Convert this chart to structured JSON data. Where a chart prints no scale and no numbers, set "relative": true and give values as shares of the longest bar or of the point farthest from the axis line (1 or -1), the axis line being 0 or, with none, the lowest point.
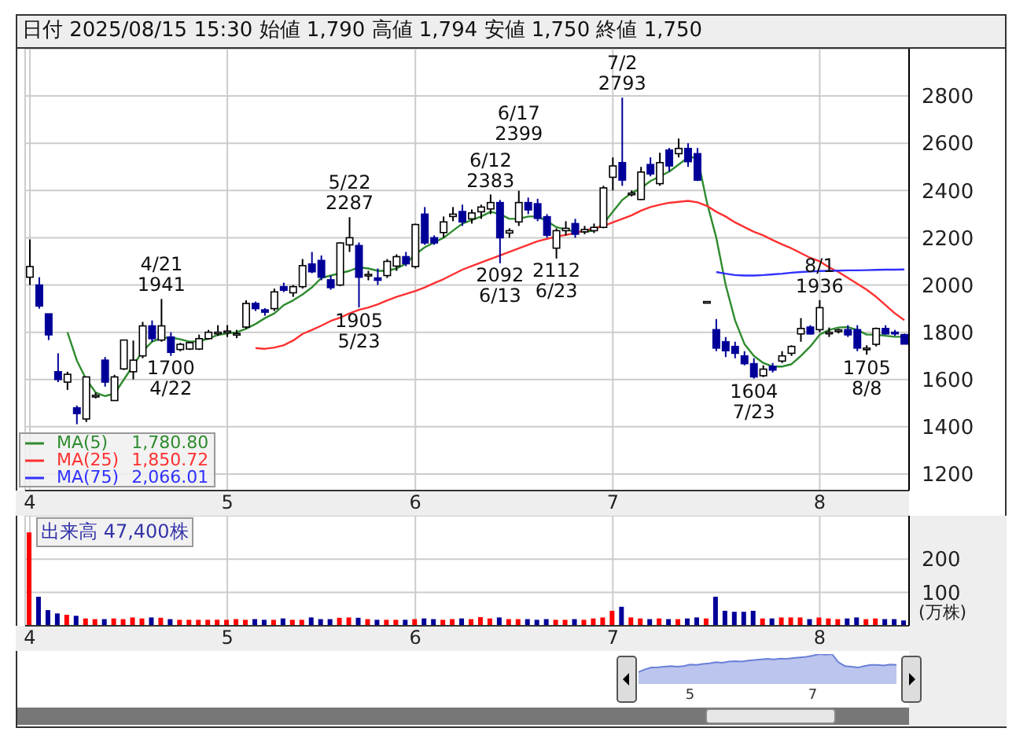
{
  "chart_data": [
    {
      "type": "candlestick",
      "title": "日付 2025/08/15 15:30 始値 1,790 高値 1,794 安値 1,750 終値 1,750",
      "categories": [
        "4",
        null,
        null,
        null,
        null,
        null,
        null,
        null,
        null,
        null,
        null,
        null,
        null,
        null,
        null,
        null,
        null,
        null,
        null,
        null,
        null,
        "5",
        null,
        null,
        null,
        null,
        null,
        null,
        null,
        null,
        null,
        null,
        null,
        null,
        null,
        null,
        null,
        null,
        null,
        null,
        null,
        "6",
        null,
        null,
        null,
        null,
        null,
        null,
        null,
        null,
        null,
        null,
        null,
        null,
        null,
        null,
        null,
        null,
        null,
        null,
        null,
        null,
        "7",
        null,
        null,
        null,
        null,
        null,
        null,
        null,
        null,
        null,
        null,
        null,
        null,
        null,
        null,
        null,
        null,
        null,
        null,
        null,
        null,
        null,
        "8",
        null,
        null,
        null,
        null,
        null,
        null,
        null,
        null,
        null
      ],
      "series": [
        {
          "type": "candlestick",
          "ohlc": [
            [
              2033,
              2193,
              2000,
              2078
            ],
            [
              2000,
              2033,
              1900,
              1911
            ],
            [
              1878,
              1878,
              1767,
              1789
            ],
            [
              1633,
              1711,
              1589,
              1600
            ],
            [
              1589,
              1633,
              1556,
              1622
            ],
            [
              1480,
              1490,
              1411,
              1456
            ],
            [
              1433,
              1611,
              1420,
              1611
            ],
            [
              1533,
              1545,
              1520,
              1533
            ],
            [
              1682,
              1695,
              1570,
              1589
            ],
            [
              1511,
              1620,
              1511,
              1611
            ],
            [
              1645,
              1767,
              1640,
              1767
            ],
            [
              1633,
              1765,
              1600,
              1682
            ],
            [
              1700,
              1844,
              1690,
              1827
            ],
            [
              1827,
              1850,
              1760,
              1773
            ],
            [
              1767,
              1941,
              1760,
              1827
            ],
            [
              1780,
              1800,
              1700,
              1715
            ],
            [
              1727,
              1755,
              1720,
              1749
            ],
            [
              1729,
              1760,
              1725,
              1756
            ],
            [
              1729,
              1790,
              1725,
              1773
            ],
            [
              1773,
              1810,
              1770,
              1800
            ],
            [
              1795,
              1830,
              1785,
              1800
            ],
            [
              1800,
              1830,
              1780,
              1805
            ],
            [
              1790,
              1810,
              1775,
              1795
            ],
            [
              1822,
              1935,
              1815,
              1922
            ],
            [
              1922,
              1930,
              1890,
              1900
            ],
            [
              1895,
              1902,
              1870,
              1885
            ],
            [
              1900,
              1985,
              1890,
              1971
            ],
            [
              1993,
              2010,
              1970,
              1978
            ],
            [
              1967,
              2000,
              1950,
              1993
            ],
            [
              1993,
              2110,
              1985,
              2082
            ],
            [
              2089,
              2140,
              2050,
              2056
            ],
            [
              2104,
              2125,
              2020,
              2033
            ],
            [
              2022,
              2040,
              1980,
              1989
            ],
            [
              2000,
              2180,
              1995,
              2178
            ],
            [
              2170,
              2287,
              2140,
              2200
            ],
            [
              2167,
              2180,
              1905,
              2033
            ],
            [
              2040,
              2060,
              2020,
              2045
            ],
            [
              2030,
              2070,
              2000,
              2020
            ],
            [
              2040,
              2110,
              2030,
              2100
            ],
            [
              2080,
              2130,
              2060,
              2120
            ],
            [
              2120,
              2140,
              2080,
              2090
            ],
            [
              2078,
              2260,
              2070,
              2256
            ],
            [
              2300,
              2330,
              2170,
              2178
            ],
            [
              2200,
              2210,
              2170,
              2178
            ],
            [
              2222,
              2290,
              2200,
              2267
            ],
            [
              2290,
              2330,
              2270,
              2300
            ],
            [
              2311,
              2340,
              2250,
              2267
            ],
            [
              2280,
              2320,
              2260,
              2305
            ],
            [
              2310,
              2340,
              2280,
              2330
            ],
            [
              2322,
              2383,
              2300,
              2349
            ],
            [
              2349,
              2360,
              2092,
              2200
            ],
            [
              2220,
              2240,
              2200,
              2230
            ],
            [
              2267,
              2399,
              2250,
              2349
            ],
            [
              2349,
              2370,
              2300,
              2318
            ],
            [
              2344,
              2365,
              2270,
              2282
            ],
            [
              2289,
              2300,
              2200,
              2211
            ],
            [
              2156,
              2240,
              2112,
              2230
            ],
            [
              2230,
              2270,
              2210,
              2240
            ],
            [
              2260,
              2280,
              2200,
              2215
            ],
            [
              2225,
              2250,
              2215,
              2235
            ],
            [
              2230,
              2260,
              2220,
              2244
            ],
            [
              2244,
              2420,
              2240,
              2411
            ],
            [
              2456,
              2540,
              2400,
              2504
            ],
            [
              2518,
              2793,
              2420,
              2444
            ],
            [
              2389,
              2400,
              2375,
              2389
            ],
            [
              2362,
              2500,
              2360,
              2478
            ],
            [
              2510,
              2540,
              2460,
              2470
            ],
            [
              2429,
              2560,
              2420,
              2518
            ],
            [
              2571,
              2580,
              2480,
              2504
            ],
            [
              2556,
              2620,
              2540,
              2578
            ],
            [
              2578,
              2600,
              2500,
              2522
            ],
            [
              2556,
              2580,
              2440,
              2444
            ],
            [
              1930,
              1930,
              1930,
              1930
            ],
            [
              1811,
              1856,
              1720,
              1733
            ],
            [
              1760,
              1780,
              1695,
              1722
            ],
            [
              1740,
              1760,
              1690,
              1711
            ],
            [
              1700,
              1720,
              1660,
              1667
            ],
            [
              1667,
              1690,
              1604,
              1611
            ],
            [
              1616,
              1660,
              1610,
              1644
            ],
            [
              1656,
              1670,
              1630,
              1640
            ],
            [
              1678,
              1720,
              1670,
              1700
            ],
            [
              1711,
              1745,
              1700,
              1740
            ],
            [
              1793,
              1860,
              1760,
              1816
            ],
            [
              1822,
              1830,
              1790,
              1793
            ],
            [
              1811,
              1936,
              1800,
              1904
            ],
            [
              1800,
              1820,
              1780,
              1800
            ],
            [
              1805,
              1815,
              1795,
              1810
            ],
            [
              1811,
              1830,
              1780,
              1789
            ],
            [
              1811,
              1830,
              1720,
              1733
            ],
            [
              1733,
              1745,
              1705,
              1733
            ],
            [
              1749,
              1820,
              1740,
              1816
            ],
            [
              1816,
              1830,
              1790,
              1793
            ],
            [
              1800,
              1810,
              1785,
              1795
            ],
            [
              1790,
              1794,
              1750,
              1750
            ]
          ],
          "colors": [
            "#ffffff",
            "#000099",
            "#000099",
            "#000099",
            "#ffffff",
            "#000099",
            "#ffffff",
            "#ffffff",
            "#000099",
            "#ffffff",
            "#ffffff",
            "#ffffff",
            "#ffffff",
            "#000099",
            "#ffffff",
            "#000099",
            "#ffffff",
            "#ffffff",
            "#ffffff",
            "#ffffff",
            "#ffffff",
            "#ffffff",
            "#ffffff",
            "#ffffff",
            "#000099",
            "#000099",
            "#ffffff",
            "#000099",
            "#ffffff",
            "#ffffff",
            "#000099",
            "#000099",
            "#000099",
            "#ffffff",
            "#ffffff",
            "#000099",
            "#ffffff",
            "#000099",
            "#ffffff",
            "#ffffff",
            "#000099",
            "#ffffff",
            "#000099",
            "#000099",
            "#ffffff",
            "#ffffff",
            "#000099",
            "#ffffff",
            "#ffffff",
            "#ffffff",
            "#000099",
            "#ffffff",
            "#ffffff",
            "#000099",
            "#000099",
            "#000099",
            "#ffffff",
            "#ffffff",
            "#000099",
            "#ffffff",
            "#ffffff",
            "#ffffff",
            "#ffffff",
            "#000099",
            "#ffffff",
            "#ffffff",
            "#000099",
            "#ffffff",
            "#000099",
            "#ffffff",
            "#000099",
            "#000099",
            "#ffffff",
            "#000099",
            "#000099",
            "#000099",
            "#000099",
            "#000099",
            "#ffffff",
            "#000099",
            "#ffffff",
            "#ffffff",
            "#ffffff",
            "#000099",
            "#ffffff",
            "#ffffff",
            "#ffffff",
            "#000099",
            "#000099",
            "#ffffff",
            "#ffffff",
            "#000099",
            "#000099",
            "#000099"
          ]
        },
        {
          "type": "line",
          "name": "MA(5)",
          "color": "#2e8b2e",
          "values": [
            null,
            null,
            null,
            null,
            1800,
            1680,
            1600,
            1545,
            1530,
            1540,
            1600,
            1660,
            1720,
            1760,
            1775,
            1778,
            1770,
            1760,
            1762,
            1773,
            1789,
            1795,
            1800,
            1815,
            1835,
            1860,
            1880,
            1915,
            1935,
            1960,
            1990,
            2030,
            2040,
            2050,
            2060,
            2075,
            2070,
            2060,
            2060,
            2070,
            2090,
            2130,
            2160,
            2180,
            2200,
            2230,
            2260,
            2275,
            2290,
            2310,
            2300,
            2280,
            2280,
            2290,
            2290,
            2270,
            2245,
            2235,
            2225,
            2225,
            2230,
            2260,
            2310,
            2360,
            2390,
            2410,
            2440,
            2460,
            2480,
            2510,
            2540,
            2540,
            2350,
            2200,
            2000,
            1850,
            1750,
            1700,
            1670,
            1655,
            1655,
            1665,
            1700,
            1740,
            1790,
            1810,
            1820,
            1822,
            1810,
            1790,
            1790,
            1785,
            1781,
            1781
          ]
        },
        {
          "type": "line",
          "name": "MA(25)",
          "color": "#ff3030",
          "values": [
            null,
            null,
            null,
            null,
            null,
            null,
            null,
            null,
            null,
            null,
            null,
            null,
            null,
            null,
            null,
            null,
            null,
            null,
            null,
            null,
            null,
            null,
            null,
            null,
            1733,
            1730,
            1735,
            1745,
            1765,
            1793,
            1810,
            1828,
            1848,
            1862,
            1880,
            1895,
            1905,
            1918,
            1935,
            1950,
            1962,
            1975,
            1990,
            2008,
            2025,
            2045,
            2065,
            2080,
            2095,
            2110,
            2125,
            2140,
            2155,
            2170,
            2185,
            2195,
            2205,
            2212,
            2220,
            2230,
            2240,
            2250,
            2265,
            2280,
            2295,
            2315,
            2330,
            2340,
            2348,
            2352,
            2356,
            2350,
            2335,
            2310,
            2290,
            2265,
            2245,
            2225,
            2210,
            2190,
            2172,
            2155,
            2135,
            2115,
            2100,
            2075,
            2055,
            2030,
            2005,
            1980,
            1950,
            1915,
            1880,
            1851
          ]
        },
        {
          "type": "line",
          "name": "MA(75)",
          "color": "#3030ff",
          "values": [
            null,
            null,
            null,
            null,
            null,
            null,
            null,
            null,
            null,
            null,
            null,
            null,
            null,
            null,
            null,
            null,
            null,
            null,
            null,
            null,
            null,
            null,
            null,
            null,
            null,
            null,
            null,
            null,
            null,
            null,
            null,
            null,
            null,
            null,
            null,
            null,
            null,
            null,
            null,
            null,
            null,
            null,
            null,
            null,
            null,
            null,
            null,
            null,
            null,
            null,
            null,
            null,
            null,
            null,
            null,
            null,
            null,
            null,
            null,
            null,
            null,
            null,
            null,
            null,
            null,
            null,
            null,
            null,
            null,
            null,
            null,
            null,
            null,
            2055,
            2048,
            2042,
            2040,
            2040,
            2042,
            2045,
            2048,
            2052,
            2055,
            2057,
            2059,
            2060,
            2061,
            2062,
            2062,
            2063,
            2064,
            2065,
            2065,
            2066
          ]
        }
      ],
      "ylim": [
        1130,
        3000
      ],
      "yticks": [
        1200,
        1400,
        1600,
        1800,
        2000,
        2200,
        2400,
        2600,
        2800
      ],
      "grid": true,
      "legend": "bottom left",
      "annotations": [
        {
          "text": "4/21\n1941",
          "y": 1941
        },
        {
          "text": "1700\n4/22",
          "y": 1700
        },
        {
          "text": "5/22\n2287",
          "y": 2287
        },
        {
          "text": "1905\n5/23",
          "y": 1905
        },
        {
          "text": "6/12\n2383",
          "y": 2383
        },
        {
          "text": "2092\n6/13",
          "y": 2092
        },
        {
          "text": "6/17\n2399",
          "y": 2399
        },
        {
          "text": "2112\n6/23",
          "y": 2112
        },
        {
          "text": "7/2\n2793",
          "y": 2793
        },
        {
          "text": "1604\n7/23",
          "y": 1604
        },
        {
          "text": "8/1\n1936",
          "y": 1936
        },
        {
          "text": "1705\n8/8",
          "y": 1705
        },
        "1,780.80",
        "1,850.72",
        "2,066.01"
      ]
    },
    {
      "type": "bar",
      "title": "出来高 47,400株",
      "ylabel": "(万株)",
      "categories": [
        "4",
        null,
        null,
        null,
        null,
        null,
        null,
        null,
        null,
        null,
        null,
        null,
        null,
        null,
        null,
        null,
        null,
        null,
        null,
        null,
        null,
        "5",
        null,
        null,
        null,
        null,
        null,
        null,
        null,
        null,
        null,
        null,
        null,
        null,
        null,
        null,
        null,
        null,
        null,
        null,
        null,
        "6",
        null,
        null,
        null,
        null,
        null,
        null,
        null,
        null,
        null,
        null,
        null,
        null,
        null,
        null,
        null,
        null,
        null,
        null,
        null,
        null,
        "7",
        null,
        null,
        null,
        null,
        null,
        null,
        null,
        null,
        null,
        null,
        null,
        null,
        null,
        null,
        null,
        null,
        null,
        null,
        null,
        null,
        null,
        "8",
        null,
        null,
        null,
        null,
        null,
        null,
        null,
        null,
        null
      ],
      "values": [
        280,
        87,
        47,
        37,
        33,
        30,
        22,
        20,
        20,
        22,
        20,
        25,
        22,
        25,
        24,
        20,
        18,
        18,
        18,
        18,
        18,
        18,
        20,
        18,
        20,
        18,
        18,
        22,
        18,
        18,
        25,
        20,
        20,
        24,
        25,
        24,
        20,
        18,
        18,
        18,
        18,
        20,
        22,
        20,
        18,
        20,
        22,
        20,
        26,
        22,
        25,
        20,
        20,
        20,
        18,
        20,
        18,
        18,
        20,
        18,
        22,
        25,
        45,
        57,
        25,
        22,
        20,
        22,
        20,
        20,
        22,
        25,
        22,
        87,
        45,
        42,
        42,
        45,
        22,
        22,
        25,
        25,
        25,
        20,
        25,
        22,
        20,
        22,
        25,
        20,
        22,
        20,
        20,
        16
      ],
      "colors": [
        "#ff0000",
        "#000099",
        "#000099",
        "#000099",
        "#ff0000",
        "#000099",
        "#ff0000",
        "#ff0000",
        "#000099",
        "#ff0000",
        "#ff0000",
        "#ff0000",
        "#ff0000",
        "#000099",
        "#ff0000",
        "#000099",
        "#ff0000",
        "#ff0000",
        "#ff0000",
        "#ff0000",
        "#ff0000",
        "#ff0000",
        "#ff0000",
        "#ff0000",
        "#000099",
        "#000099",
        "#ff0000",
        "#000099",
        "#ff0000",
        "#ff0000",
        "#000099",
        "#000099",
        "#000099",
        "#ff0000",
        "#ff0000",
        "#000099",
        "#ff0000",
        "#000099",
        "#ff0000",
        "#ff0000",
        "#000099",
        "#ff0000",
        "#000099",
        "#000099",
        "#ff0000",
        "#ff0000",
        "#000099",
        "#ff0000",
        "#ff0000",
        "#ff0000",
        "#000099",
        "#ff0000",
        "#ff0000",
        "#000099",
        "#000099",
        "#000099",
        "#ff0000",
        "#ff0000",
        "#000099",
        "#ff0000",
        "#ff0000",
        "#ff0000",
        "#ff0000",
        "#000099",
        "#ff0000",
        "#ff0000",
        "#000099",
        "#ff0000",
        "#000099",
        "#ff0000",
        "#000099",
        "#000099",
        "#ff0000",
        "#000099",
        "#000099",
        "#000099",
        "#000099",
        "#000099",
        "#ff0000",
        "#000099",
        "#ff0000",
        "#ff0000",
        "#ff0000",
        "#000099",
        "#ff0000",
        "#ff0000",
        "#ff0000",
        "#000099",
        "#000099",
        "#ff0000",
        "#ff0000",
        "#000099",
        "#000099",
        "#000099"
      ],
      "ylim": [
        0,
        330
      ],
      "yticks": [
        100,
        200
      ],
      "grid": true
    },
    {
      "type": "area",
      "relative": true,
      "color": "#6a7fd8",
      "categories": [
        null,
        null,
        null,
        null,
        null,
        null,
        null,
        null,
        "5",
        null,
        null,
        null,
        null,
        null,
        null,
        null,
        null,
        null,
        null,
        null,
        null,
        null,
        null,
        null,
        null,
        null,
        null,
        "7",
        null,
        null,
        null,
        null,
        null,
        null,
        null,
        null,
        null,
        null,
        null,
        null,
        null
      ],
      "values": [
        0.4,
        0.49,
        0.55,
        0.56,
        0.58,
        0.6,
        0.58,
        0.6,
        0.65,
        0.64,
        0.67,
        0.69,
        0.73,
        0.71,
        0.75,
        0.76,
        0.75,
        0.78,
        0.8,
        0.82,
        0.84,
        0.82,
        0.85,
        0.84,
        0.87,
        0.89,
        0.91,
        0.95,
        1,
        0.98,
        1,
        0.73,
        0.6,
        0.58,
        0.55,
        0.6,
        0.64,
        0.64,
        0.62,
        0.65,
        0.64
      ]
    }
  ]
}
